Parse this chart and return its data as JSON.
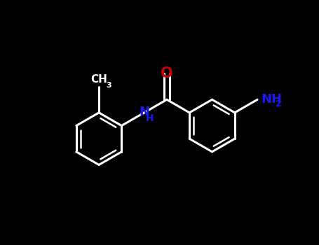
{
  "background_color": "#000000",
  "bond_color": "#ffffff",
  "atom_colors": {
    "O": "#cc0000",
    "N": "#1a1aee",
    "C": "#ffffff"
  },
  "bond_width": 2.2,
  "lw_inner": 1.8,
  "font_size_O": 15,
  "font_size_N": 13,
  "font_size_NH2": 13,
  "font_size_sub": 9,
  "font_size_CH3": 11,
  "xlim": [
    0,
    10
  ],
  "ylim": [
    0,
    7.7
  ]
}
